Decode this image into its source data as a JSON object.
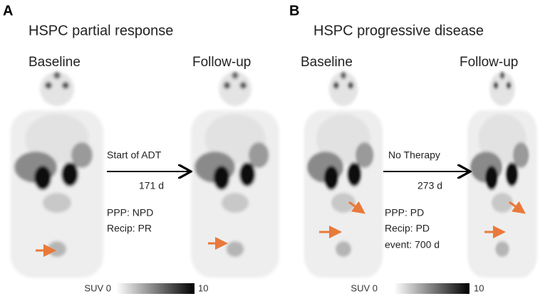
{
  "panels": [
    {
      "label": "A",
      "title": "HSPC partial response",
      "baseline": "Baseline",
      "followup": "Follow-up",
      "arrow_top": "Start of ADT",
      "arrow_bottom": "171 d",
      "notes": [
        "PPP: NPD",
        "Recip: PR"
      ],
      "colorbar": {
        "min_label": "SUV 0",
        "max_label": "10"
      }
    },
    {
      "label": "B",
      "title": "HSPC progressive disease",
      "baseline": "Baseline",
      "followup": "Follow-up",
      "arrow_top": "No Therapy",
      "arrow_bottom": "273 d",
      "notes": [
        "PPP: PD",
        "Recip: PD",
        "event: 700 d"
      ],
      "colorbar": {
        "min_label": "SUV 0",
        "max_label": "10"
      }
    }
  ]
}
